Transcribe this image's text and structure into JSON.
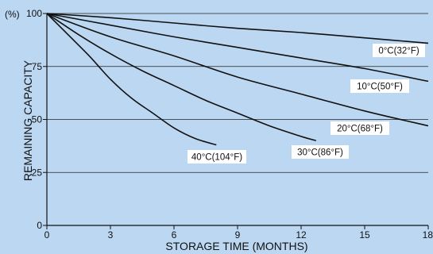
{
  "chart_data": {
    "type": "line",
    "xlabel": "STORAGE TIME (MONTHS)",
    "ylabel": "REMAINING CAPACITY",
    "y_unit": "(%)",
    "xlim": [
      0,
      18
    ],
    "ylim": [
      0,
      100
    ],
    "x_ticks": [
      0,
      3,
      6,
      9,
      12,
      15,
      18
    ],
    "y_ticks": [
      0,
      25,
      50,
      75,
      100
    ],
    "grid": true,
    "legend": "inline labels",
    "colors": {
      "background": "#bcd7f1",
      "line": "#111111",
      "grid": "#222222",
      "label_box": "#ffffff"
    },
    "series": [
      {
        "name": "0°C(32°F)",
        "x": [
          0,
          3,
          6,
          9,
          12,
          15,
          18
        ],
        "y": [
          100,
          98,
          95.5,
          93,
          91,
          88.5,
          86
        ]
      },
      {
        "name": "10°C(50°F)",
        "x": [
          0,
          3,
          6,
          9,
          12,
          15,
          18
        ],
        "y": [
          100,
          94.5,
          89,
          84,
          79,
          74,
          68
        ]
      },
      {
        "name": "20°C(68°F)",
        "x": [
          0,
          3,
          6,
          9,
          12,
          15,
          18
        ],
        "y": [
          100,
          89,
          80,
          70,
          62,
          54,
          47
        ]
      },
      {
        "name": "30°C(86°F)",
        "x": [
          0,
          1.5,
          3,
          4.5,
          6,
          7.5,
          9,
          10.5,
          12,
          12.7
        ],
        "y": [
          100,
          90,
          81,
          73,
          66,
          59,
          53,
          47,
          42,
          40
        ]
      },
      {
        "name": "40°C(104°F)",
        "x": [
          0,
          1,
          2,
          3,
          4,
          5,
          6,
          7,
          8
        ],
        "y": [
          100,
          90,
          80,
          69,
          60,
          53,
          46,
          41,
          38
        ]
      }
    ]
  }
}
